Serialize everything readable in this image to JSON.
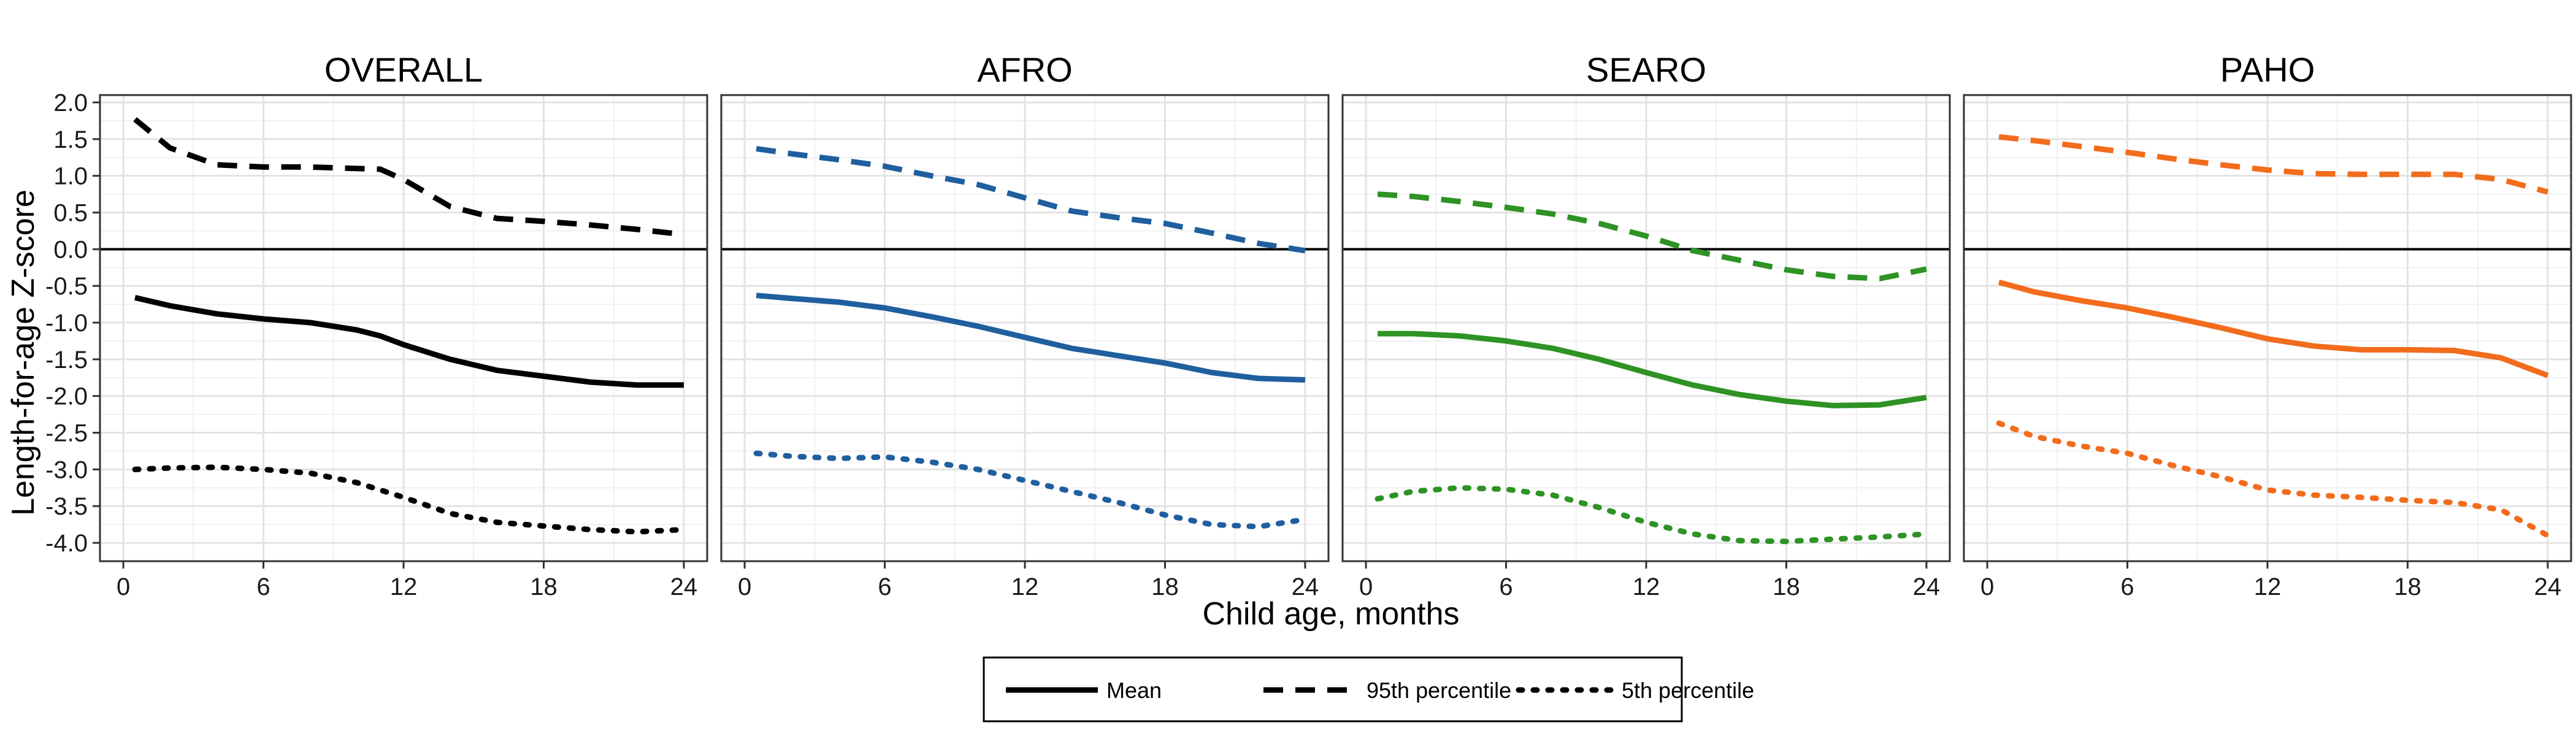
{
  "chart_data": {
    "type": "line",
    "ylabel": "Length-for-age Z-score",
    "xlabel": "Child age, months",
    "xlim": [
      -1,
      25
    ],
    "ylim": [
      -4.25,
      2.1
    ],
    "x_ticks": [
      0,
      6,
      12,
      18,
      24
    ],
    "x_tick_labels": [
      "0",
      "6",
      "12",
      "18",
      "24"
    ],
    "y_ticks": [
      2.0,
      1.5,
      1.0,
      0.5,
      0.0,
      -0.5,
      -1.0,
      -1.5,
      -2.0,
      -2.5,
      -3.0,
      -3.5,
      -4.0
    ],
    "y_tick_labels": [
      "2.0",
      "1.5",
      "1.0",
      "0.5",
      "0.0",
      "-0.5",
      "-1.0",
      "-1.5",
      "-2.0",
      "-2.5",
      "-3.0",
      "-3.5",
      "-4.0"
    ],
    "reference_line_y": 0,
    "grid": true,
    "legend_position": "bottom",
    "legend": [
      {
        "name": "Mean",
        "linetype": "solid"
      },
      {
        "name": "95th percentile",
        "linetype": "dashed"
      },
      {
        "name": "5th percentile",
        "linetype": "dotted"
      }
    ],
    "panels": [
      {
        "title": "OVERALL",
        "color": "#000000",
        "series": [
          {
            "name": "95th percentile",
            "linetype": "dashed",
            "x": [
              0.5,
              2,
              4,
              6,
              8,
              10,
              11,
              12,
              14,
              16,
              18,
              20,
              22,
              24
            ],
            "y": [
              1.77,
              1.38,
              1.15,
              1.12,
              1.12,
              1.1,
              1.09,
              0.95,
              0.58,
              0.42,
              0.38,
              0.33,
              0.27,
              0.2
            ]
          },
          {
            "name": "Mean",
            "linetype": "solid",
            "x": [
              0.5,
              2,
              4,
              6,
              8,
              10,
              11,
              12,
              14,
              16,
              18,
              20,
              22,
              24
            ],
            "y": [
              -0.66,
              -0.77,
              -0.88,
              -0.95,
              -1.0,
              -1.1,
              -1.18,
              -1.3,
              -1.5,
              -1.65,
              -1.73,
              -1.81,
              -1.85,
              -1.85
            ]
          },
          {
            "name": "5th percentile",
            "linetype": "dotted",
            "x": [
              0.5,
              2,
              4,
              6,
              8,
              10,
              12,
              14,
              16,
              18,
              20,
              22,
              24
            ],
            "y": [
              -3.0,
              -2.98,
              -2.97,
              -3.0,
              -3.05,
              -3.18,
              -3.38,
              -3.6,
              -3.72,
              -3.77,
              -3.82,
              -3.85,
              -3.82
            ]
          }
        ]
      },
      {
        "title": "AFRO",
        "color": "#1f5f9e",
        "series": [
          {
            "name": "95th percentile",
            "linetype": "dashed",
            "x": [
              0.5,
              2,
              4,
              6,
              8,
              10,
              12,
              14,
              16,
              18,
              20,
              22,
              24
            ],
            "y": [
              1.37,
              1.3,
              1.22,
              1.13,
              1.0,
              0.88,
              0.7,
              0.52,
              0.43,
              0.35,
              0.22,
              0.08,
              -0.02
            ]
          },
          {
            "name": "Mean",
            "linetype": "solid",
            "x": [
              0.5,
              2,
              4,
              6,
              8,
              10,
              12,
              14,
              16,
              18,
              20,
              22,
              24
            ],
            "y": [
              -0.63,
              -0.67,
              -0.72,
              -0.8,
              -0.92,
              -1.05,
              -1.2,
              -1.35,
              -1.45,
              -1.55,
              -1.68,
              -1.76,
              -1.78
            ]
          },
          {
            "name": "5th percentile",
            "linetype": "dotted",
            "x": [
              0.5,
              2,
              4,
              6,
              8,
              10,
              12,
              14,
              16,
              18,
              20,
              22,
              24
            ],
            "y": [
              -2.78,
              -2.82,
              -2.85,
              -2.83,
              -2.9,
              -3.0,
              -3.15,
              -3.3,
              -3.45,
              -3.62,
              -3.75,
              -3.78,
              -3.68
            ]
          }
        ]
      },
      {
        "title": "SEARO",
        "color": "#2e9324",
        "series": [
          {
            "name": "95th percentile",
            "linetype": "dashed",
            "x": [
              0.5,
              2,
              4,
              6,
              8,
              10,
              12,
              14,
              16,
              18,
              20,
              22,
              24
            ],
            "y": [
              0.75,
              0.72,
              0.65,
              0.57,
              0.48,
              0.35,
              0.18,
              -0.02,
              -0.15,
              -0.28,
              -0.37,
              -0.4,
              -0.27
            ]
          },
          {
            "name": "Mean",
            "linetype": "solid",
            "x": [
              0.5,
              2,
              4,
              6,
              8,
              10,
              12,
              14,
              16,
              18,
              20,
              22,
              24
            ],
            "y": [
              -1.15,
              -1.15,
              -1.18,
              -1.25,
              -1.35,
              -1.5,
              -1.68,
              -1.85,
              -1.98,
              -2.07,
              -2.13,
              -2.12,
              -2.02
            ]
          },
          {
            "name": "5th percentile",
            "linetype": "dotted",
            "x": [
              0.5,
              2,
              4,
              6,
              8,
              10,
              12,
              14,
              16,
              18,
              20,
              22,
              24
            ],
            "y": [
              -3.4,
              -3.3,
              -3.25,
              -3.27,
              -3.35,
              -3.52,
              -3.72,
              -3.88,
              -3.97,
              -3.98,
              -3.95,
              -3.92,
              -3.88
            ]
          }
        ]
      },
      {
        "title": "PAHO",
        "color": "#f26c1c",
        "series": [
          {
            "name": "95th percentile",
            "linetype": "dashed",
            "x": [
              0.5,
              2,
              4,
              6,
              8,
              10,
              12,
              14,
              16,
              18,
              20,
              22,
              24
            ],
            "y": [
              1.53,
              1.48,
              1.4,
              1.32,
              1.23,
              1.15,
              1.08,
              1.03,
              1.02,
              1.02,
              1.02,
              0.95,
              0.78
            ]
          },
          {
            "name": "Mean",
            "linetype": "solid",
            "x": [
              0.5,
              2,
              4,
              6,
              8,
              10,
              12,
              14,
              16,
              18,
              20,
              22,
              24
            ],
            "y": [
              -0.45,
              -0.58,
              -0.7,
              -0.8,
              -0.93,
              -1.07,
              -1.22,
              -1.32,
              -1.37,
              -1.37,
              -1.38,
              -1.48,
              -1.72
            ]
          },
          {
            "name": "5th percentile",
            "linetype": "dotted",
            "x": [
              0.5,
              2,
              4,
              6,
              8,
              10,
              12,
              14,
              16,
              18,
              20,
              22,
              24
            ],
            "y": [
              -2.37,
              -2.55,
              -2.68,
              -2.78,
              -2.95,
              -3.1,
              -3.28,
              -3.35,
              -3.38,
              -3.42,
              -3.45,
              -3.55,
              -3.9
            ]
          }
        ]
      }
    ]
  }
}
